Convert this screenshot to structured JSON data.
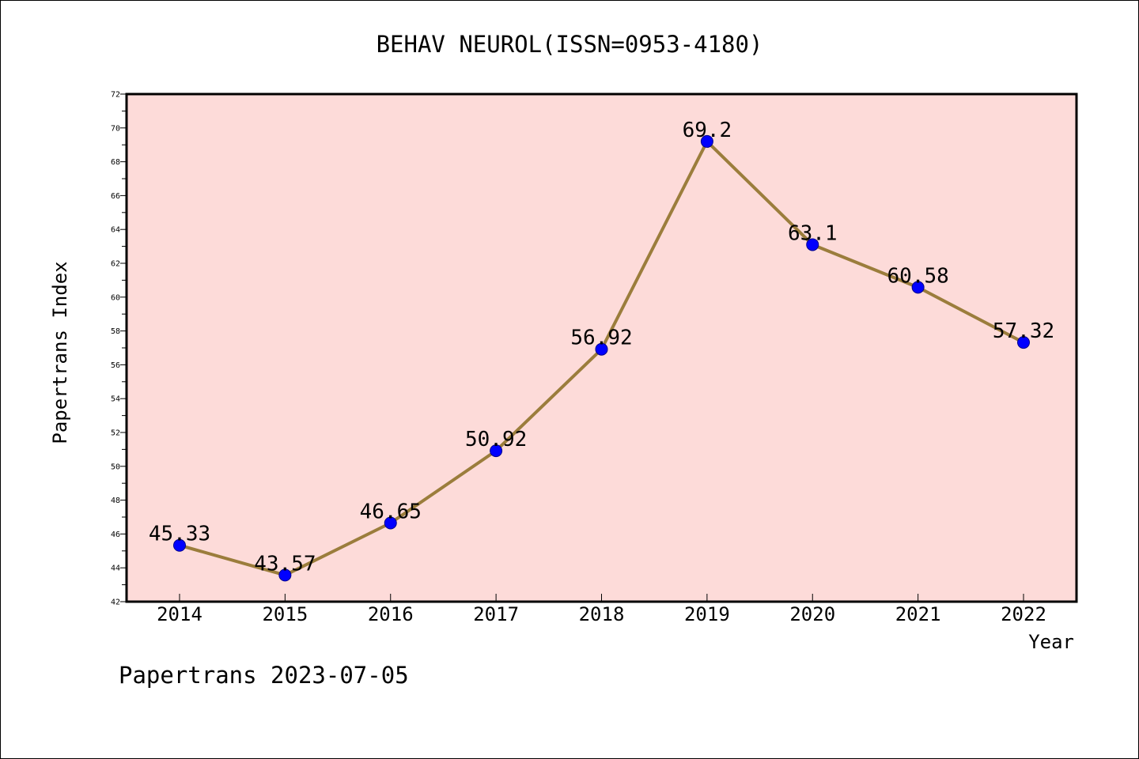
{
  "chart_data": {
    "type": "line",
    "title": "BEHAV NEUROL(ISSN=0953-4180)",
    "xlabel": "Year",
    "ylabel": "Papertrans Index",
    "categories": [
      "2014",
      "2015",
      "2016",
      "2017",
      "2018",
      "2019",
      "2020",
      "2021",
      "2022"
    ],
    "values": [
      45.33,
      43.57,
      46.65,
      50.92,
      56.92,
      69.2,
      63.1,
      60.58,
      57.32
    ],
    "data_labels": [
      "45.33",
      "43.57",
      "46.65",
      "50.92",
      "56.92",
      "69.2",
      "63.1",
      "60.58",
      "57.32"
    ],
    "ylim": [
      42,
      72
    ],
    "yticks": [
      42,
      44,
      46,
      48,
      50,
      52,
      54,
      56,
      58,
      60,
      62,
      64,
      66,
      68,
      70,
      72
    ],
    "ytick_labels": [
      "42",
      "44",
      "46",
      "48",
      "50",
      "52",
      "54",
      "56",
      "58",
      "60",
      "62",
      "64",
      "66",
      "68",
      "70",
      "72"
    ],
    "grid": false,
    "colors": {
      "plot_background": "#fddbd9",
      "line": "#9b7d3c",
      "marker": "#0000ff",
      "axis": "#000000"
    }
  },
  "footer": {
    "watermark": "Papertrans 2023-07-05"
  }
}
